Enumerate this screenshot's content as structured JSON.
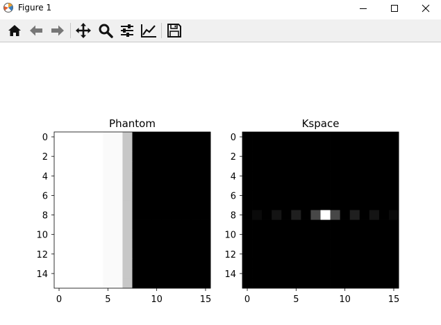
{
  "window": {
    "title": "Figure 1"
  },
  "toolbar": {
    "tools": [
      {
        "icon": "home-icon"
      },
      {
        "icon": "back-arrow-icon"
      },
      {
        "icon": "forward-arrow-icon"
      },
      {
        "icon": "pan-icon"
      },
      {
        "icon": "zoom-icon"
      },
      {
        "icon": "configure-subplots-icon"
      },
      {
        "icon": "edit-axis-icon"
      },
      {
        "icon": "save-icon"
      }
    ]
  },
  "chart_data": [
    {
      "type": "heatmap",
      "title": "Phantom",
      "xticks": [
        "0",
        "5",
        "10",
        "15"
      ],
      "yticks": [
        "0",
        "2",
        "4",
        "6",
        "8",
        "10",
        "12",
        "14"
      ],
      "xlim": [
        -0.5,
        15.5
      ],
      "ylim": [
        15.5,
        -0.5
      ],
      "colormap": "gray",
      "column_values": [
        1,
        1,
        1,
        1,
        1,
        0.98,
        0.98,
        0.78,
        0,
        0,
        0,
        0,
        0,
        0,
        0,
        0
      ]
    },
    {
      "type": "heatmap",
      "title": "Kspace",
      "xticks": [
        "0",
        "5",
        "10",
        "15"
      ],
      "yticks": [
        "0",
        "2",
        "4",
        "6",
        "8",
        "10",
        "12",
        "14"
      ],
      "xlim": [
        -0.5,
        15.5
      ],
      "ylim": [
        15.5,
        -0.5
      ],
      "colormap": "gray",
      "row": 8,
      "row_values": [
        0,
        0.04,
        0,
        0.08,
        0,
        0.12,
        0,
        0.28,
        1,
        0.28,
        0,
        0.12,
        0,
        0.08,
        0,
        0.04
      ]
    }
  ]
}
